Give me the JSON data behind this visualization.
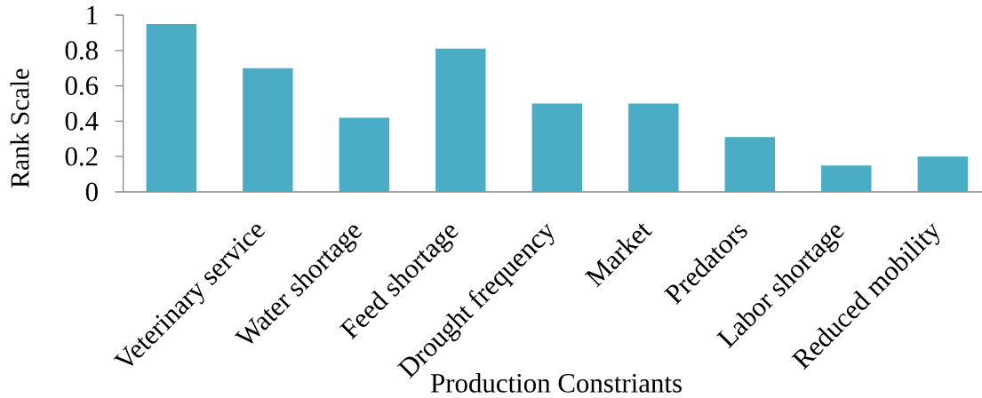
{
  "chart_data": {
    "type": "bar",
    "xlabel": "Production Constriants",
    "ylabel": "Rank Scale",
    "categories": [
      null,
      "Veterinary service",
      "Water shortage",
      "Feed shortage",
      "Drought frequency",
      "Market",
      "Predators",
      "Labor shortage",
      "Reduced mobility"
    ],
    "values": [
      0.95,
      0.7,
      0.42,
      0.81,
      0.5,
      0.5,
      0.31,
      0.15,
      0.2
    ],
    "color": "#4bacc6",
    "ylim": [
      0,
      1
    ],
    "yticks": [
      0,
      0.2,
      0.4,
      0.6,
      0.8,
      1
    ]
  }
}
